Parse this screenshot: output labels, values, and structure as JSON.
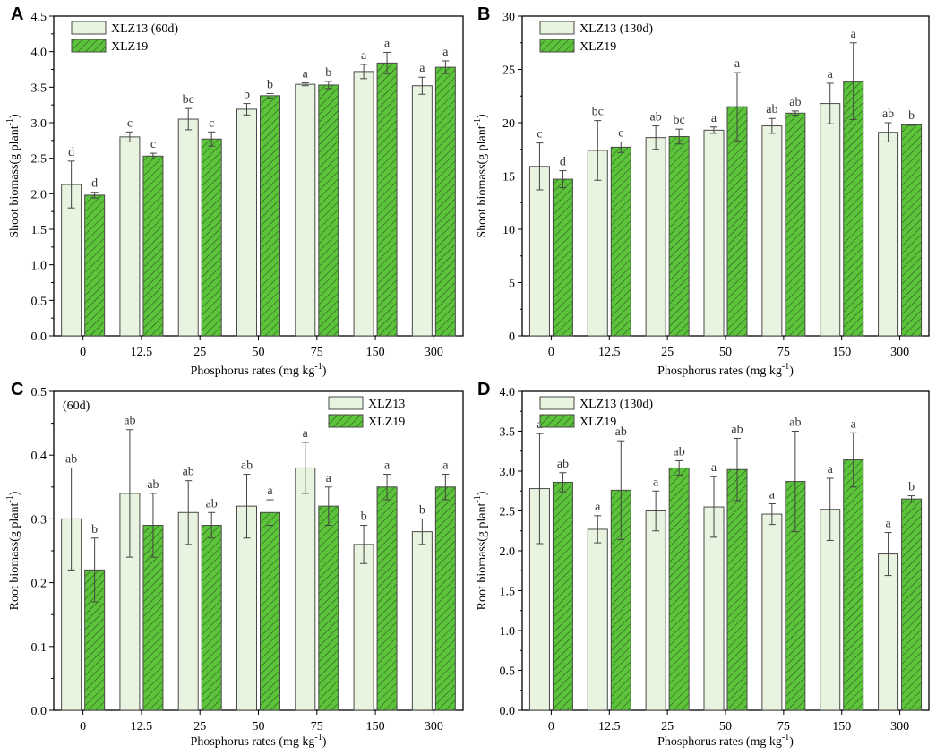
{
  "figure": {
    "panels": [
      "A",
      "B",
      "C",
      "D"
    ]
  },
  "colors": {
    "light_bar": "#e8f4e0",
    "green_bar": "#5cc43a",
    "bar_stroke": "#4a4a4a",
    "hatch": "#2a4a20"
  },
  "chart_data": [
    {
      "panel": "A",
      "type": "bar",
      "title": "",
      "xlabel": "Phosphorus rates",
      "ylabel": "Shoot biomass",
      "categories": [
        "0",
        "12.5",
        "25",
        "50",
        "75",
        "150",
        "300"
      ],
      "ylim": [
        0,
        4.5
      ],
      "yticks": [
        "0.0",
        "0.5",
        "1.0",
        "1.5",
        "2.0",
        "2.5",
        "3.0",
        "3.5",
        "4.0",
        "4.5"
      ],
      "ytick_values": [
        0,
        0.5,
        1.0,
        1.5,
        2.0,
        2.5,
        3.0,
        3.5,
        4.0,
        4.5
      ],
      "legend_position": "top-left",
      "note": "",
      "series": [
        {
          "name": "XLZ13",
          "legend_label": "XLZ13 (60d)",
          "values": [
            2.13,
            2.8,
            3.05,
            3.19,
            3.54,
            3.72,
            3.52
          ],
          "errors": [
            0.33,
            0.07,
            0.15,
            0.08,
            0.02,
            0.1,
            0.12
          ],
          "letters": [
            "d",
            "c",
            "bc",
            "b",
            "a",
            "a",
            "a"
          ]
        },
        {
          "name": "XLZ19",
          "legend_label": "XLZ19",
          "values": [
            1.98,
            2.53,
            2.77,
            3.38,
            3.53,
            3.84,
            3.78
          ],
          "errors": [
            0.04,
            0.04,
            0.1,
            0.03,
            0.05,
            0.15,
            0.09
          ],
          "letters": [
            "d",
            "c",
            "c",
            "b",
            "b",
            "a",
            "a"
          ]
        }
      ]
    },
    {
      "panel": "B",
      "type": "bar",
      "title": "",
      "xlabel": "Phosphorus rates",
      "ylabel": "Shoot biomass",
      "categories": [
        "0",
        "12.5",
        "25",
        "50",
        "75",
        "150",
        "300"
      ],
      "ylim": [
        0,
        30
      ],
      "yticks": [
        "0",
        "5",
        "10",
        "15",
        "20",
        "25",
        "30"
      ],
      "ytick_values": [
        0,
        5,
        10,
        15,
        20,
        25,
        30
      ],
      "legend_position": "top-left",
      "note": "",
      "series": [
        {
          "name": "XLZ13",
          "legend_label": "XLZ13 (130d)",
          "values": [
            15.9,
            17.4,
            18.6,
            19.3,
            19.7,
            21.8,
            19.1
          ],
          "errors": [
            2.2,
            2.8,
            1.1,
            0.3,
            0.7,
            1.9,
            0.9
          ],
          "letters": [
            "c",
            "bc",
            "ab",
            "a",
            "ab",
            "a",
            "ab"
          ]
        },
        {
          "name": "XLZ19",
          "legend_label": "XLZ19",
          "values": [
            14.7,
            17.7,
            18.7,
            21.5,
            20.9,
            23.9,
            19.8
          ],
          "errors": [
            0.8,
            0.5,
            0.7,
            3.2,
            0.2,
            3.6,
            0.05
          ],
          "letters": [
            "d",
            "c",
            "bc",
            "a",
            "ab",
            "a",
            "b"
          ]
        }
      ]
    },
    {
      "panel": "C",
      "type": "bar",
      "title": "",
      "xlabel": "Phosphorus rates",
      "ylabel": "Root biomass",
      "categories": [
        "0",
        "12.5",
        "25",
        "50",
        "75",
        "150",
        "300"
      ],
      "ylim": [
        0,
        0.5
      ],
      "yticks": [
        "0.0",
        "0.1",
        "0.2",
        "0.3",
        "0.4",
        "0.5"
      ],
      "ytick_values": [
        0,
        0.1,
        0.2,
        0.3,
        0.4,
        0.5
      ],
      "legend_position": "top-right",
      "note": "(60d)",
      "series": [
        {
          "name": "XLZ13",
          "legend_label": "XLZ13",
          "values": [
            0.3,
            0.34,
            0.31,
            0.32,
            0.38,
            0.26,
            0.28
          ],
          "errors": [
            0.08,
            0.1,
            0.05,
            0.05,
            0.04,
            0.03,
            0.02
          ],
          "letters": [
            "ab",
            "ab",
            "ab",
            "ab",
            "a",
            "b",
            "b"
          ]
        },
        {
          "name": "XLZ19",
          "legend_label": "XLZ19",
          "values": [
            0.22,
            0.29,
            0.29,
            0.31,
            0.32,
            0.35,
            0.35
          ],
          "errors": [
            0.05,
            0.05,
            0.02,
            0.02,
            0.03,
            0.02,
            0.02
          ],
          "letters": [
            "b",
            "ab",
            "ab",
            "a",
            "a",
            "a",
            "a"
          ]
        }
      ]
    },
    {
      "panel": "D",
      "type": "bar",
      "title": "",
      "xlabel": "Phosphorus rates",
      "ylabel": "Root biomass",
      "categories": [
        "0",
        "12.5",
        "25",
        "50",
        "75",
        "150",
        "300"
      ],
      "ylim": [
        0,
        4.0
      ],
      "yticks": [
        "0.0",
        "0.5",
        "1.0",
        "1.5",
        "2.0",
        "2.5",
        "3.0",
        "3.5",
        "4.0"
      ],
      "ytick_values": [
        0,
        0.5,
        1.0,
        1.5,
        2.0,
        2.5,
        3.0,
        3.5,
        4.0
      ],
      "legend_position": "top-left",
      "note": "",
      "series": [
        {
          "name": "XLZ13",
          "legend_label": "XLZ13 (130d)",
          "values": [
            2.78,
            2.27,
            2.5,
            2.55,
            2.46,
            2.52,
            1.96
          ],
          "errors": [
            0.69,
            0.17,
            0.25,
            0.38,
            0.13,
            0.39,
            0.27
          ],
          "letters": [
            "a",
            "a",
            "a",
            "a",
            "a",
            "a",
            "a"
          ]
        },
        {
          "name": "XLZ19",
          "legend_label": "XLZ19",
          "values": [
            2.86,
            2.76,
            3.04,
            3.02,
            2.87,
            3.14,
            2.65
          ],
          "errors": [
            0.12,
            0.62,
            0.09,
            0.39,
            0.63,
            0.34,
            0.04
          ],
          "letters": [
            "ab",
            "ab",
            "ab",
            "ab",
            "ab",
            "a",
            "b"
          ]
        }
      ]
    }
  ],
  "units": {
    "shoot": "(g plant",
    "root": "(g plant",
    "exponent": "-1",
    "close": ")",
    "x": "(mg kg",
    "x_exponent": "-1",
    "x_close": ")"
  }
}
